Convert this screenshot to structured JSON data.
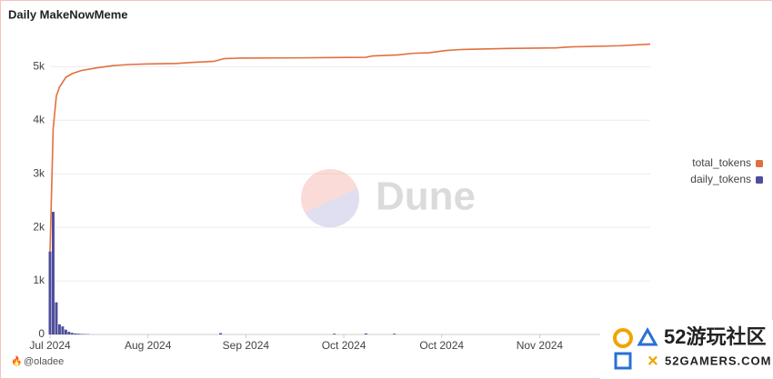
{
  "chart_data": {
    "type": "bar-line",
    "title": "Daily MakeNowMeme",
    "ylim": [
      0,
      5600
    ],
    "yticks": [
      0,
      {
        "value": 1000,
        "label": "1k"
      },
      {
        "value": 2000,
        "label": "2k"
      },
      {
        "value": 3000,
        "label": "3k"
      },
      {
        "value": 4000,
        "label": "4k"
      },
      {
        "value": 5000,
        "label": "5k"
      }
    ],
    "xlim": [
      0,
      190
    ],
    "xticks": [
      {
        "value": 0,
        "label": "Jul 2024"
      },
      {
        "value": 31,
        "label": "Aug 2024"
      },
      {
        "value": 62,
        "label": "Sep 2024"
      },
      {
        "value": 93,
        "label": "Oct 2024"
      },
      {
        "value": 124,
        "label": "Oct 2024"
      },
      {
        "value": 155,
        "label": "Nov 2024"
      }
    ],
    "grid": true,
    "legend": "right",
    "series": [
      {
        "name": "total_tokens",
        "type": "line",
        "color": "#e0703f",
        "x": [
          0,
          1,
          2,
          3,
          5,
          7,
          10,
          15,
          20,
          25,
          30,
          40,
          45,
          52,
          55,
          60,
          80,
          90,
          100,
          102,
          110,
          115,
          120,
          125,
          130,
          145,
          160,
          165,
          180,
          190
        ],
        "values": [
          1550,
          3840,
          4450,
          4620,
          4800,
          4870,
          4930,
          4980,
          5020,
          5040,
          5050,
          5060,
          5080,
          5100,
          5150,
          5160,
          5165,
          5170,
          5175,
          5200,
          5220,
          5250,
          5260,
          5300,
          5320,
          5340,
          5350,
          5370,
          5390,
          5420
        ]
      },
      {
        "name": "daily_tokens",
        "type": "bar",
        "color": "#4f4d9b",
        "x": [
          0,
          1,
          2,
          3,
          4,
          5,
          6,
          7,
          8,
          9,
          10,
          11,
          12,
          54,
          90,
          100,
          109
        ],
        "values": [
          1550,
          2290,
          600,
          190,
          150,
          90,
          50,
          30,
          20,
          15,
          10,
          8,
          5,
          25,
          15,
          20,
          15
        ]
      }
    ],
    "watermark": "Dune",
    "author": "@oladee",
    "overlay_brand": "52游玩社区",
    "overlay_url": "52GAMERS.COM"
  }
}
